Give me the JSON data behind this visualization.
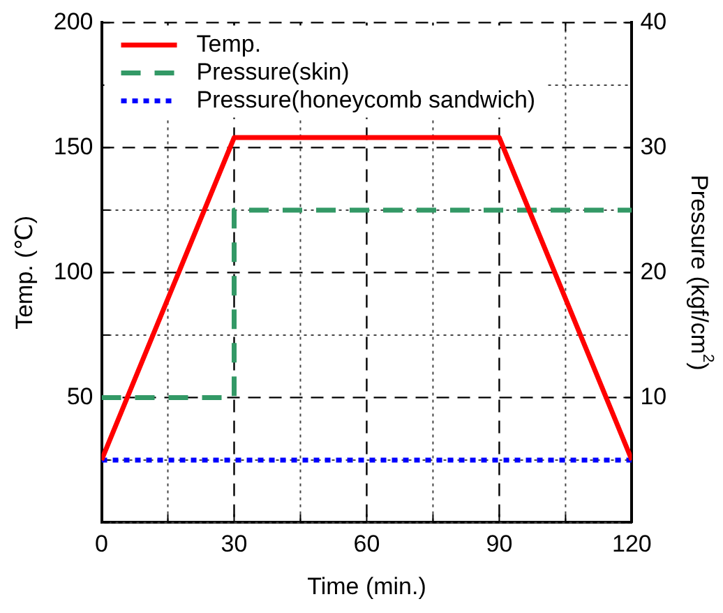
{
  "chart_data": {
    "type": "line",
    "xlabel": "Time (min.)",
    "ylabel": "Temp. (℃)",
    "y2label": "Pressure (kgf/cm$^{2}$)",
    "xlim": [
      0,
      120
    ],
    "xticks": [
      0,
      {
        "value": 15,
        "label": null
      },
      30,
      {
        "value": 45,
        "label": null
      },
      60,
      {
        "value": 75,
        "label": null
      },
      90,
      {
        "value": 105,
        "label": null
      },
      120
    ],
    "ylim": [
      0,
      200
    ],
    "yticks": [
      {
        "value": 0,
        "label": null
      },
      {
        "value": 25,
        "label": null
      },
      50,
      {
        "value": 75,
        "label": null
      },
      100,
      {
        "value": 125,
        "label": null
      },
      150,
      {
        "value": 175,
        "label": null
      },
      200
    ],
    "y2lim": [
      0,
      40
    ],
    "y2ticks": [
      {
        "value": 0,
        "label": null
      },
      10,
      20,
      30,
      40
    ],
    "grid": true,
    "legend": "top left",
    "marker": "none",
    "series": [
      {
        "name": "Temp.",
        "color": "#ff0000",
        "line_style": "solid",
        "x": [
          0,
          30,
          90,
          120
        ],
        "values": [
          25,
          154,
          154,
          25
        ]
      },
      {
        "name": "Pressure(skin)",
        "color": "#339966",
        "line_style": "dashed",
        "axis": "y2",
        "x": [
          0,
          30,
          30,
          120
        ],
        "values": [
          10,
          10,
          25,
          25
        ]
      },
      {
        "name": "Pressure(honeycomb sandwich)",
        "color": "#0000ff",
        "line_style": "dotted",
        "axis": "y2",
        "x": [
          0,
          120
        ],
        "values": [
          5,
          5
        ]
      }
    ]
  }
}
